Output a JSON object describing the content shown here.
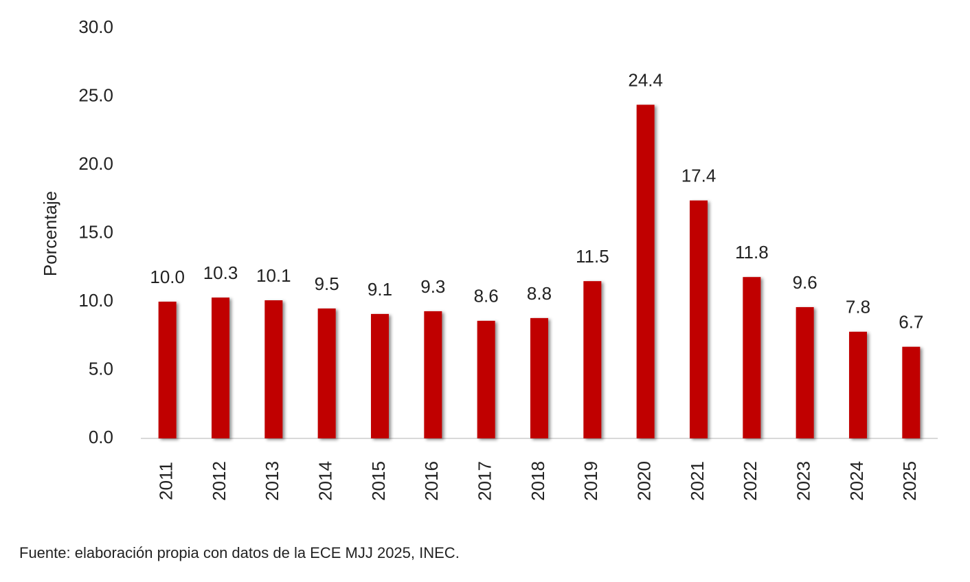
{
  "chart_data": {
    "type": "bar",
    "y_label": "Porcentaje",
    "source": "Fuente: elaboración propia con datos de la ECE MJJ 2025, INEC.",
    "categories": [
      "2011",
      "2012",
      "2013",
      "2014",
      "2015",
      "2016",
      "2017",
      "2018",
      "2019",
      "2020",
      "2021",
      "2022",
      "2023",
      "2024",
      "2025"
    ],
    "values": [
      10.0,
      10.3,
      10.1,
      9.5,
      9.1,
      9.3,
      8.6,
      8.8,
      11.5,
      24.4,
      17.4,
      11.8,
      9.6,
      7.8,
      6.7
    ],
    "value_labels": [
      "10.0",
      "10.3",
      "10.1",
      "9.5",
      "9.1",
      "9.3",
      "8.6",
      "8.8",
      "11.5",
      "24.4",
      "17.4",
      "11.8",
      "9.6",
      "7.8",
      "6.7"
    ],
    "color": "#c00000",
    "ylim": [
      0,
      30
    ],
    "yticks": [
      {
        "value": 0,
        "label": "0.0"
      },
      {
        "value": 5,
        "label": "5.0"
      },
      {
        "value": 10,
        "label": "10.0"
      },
      {
        "value": 15,
        "label": "15.0"
      },
      {
        "value": 20,
        "label": "20.0"
      },
      {
        "value": 25,
        "label": "25.0"
      },
      {
        "value": 30,
        "label": "30.0"
      }
    ],
    "grid": false
  }
}
